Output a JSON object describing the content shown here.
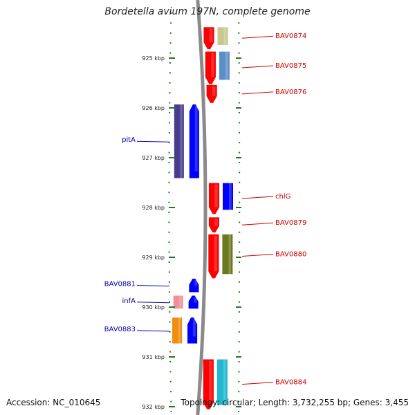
{
  "title": "Bordetella avium 197N, complete genome",
  "footer": {
    "accession": "Accession: NC_010645",
    "topology": "Topology: circular; Length: 3,732,255 bp; Genes: 3,455"
  },
  "colors": {
    "forward_strand": "#ff0000",
    "reverse_strand": "#0000ff",
    "forward_label": "#cc0000",
    "reverse_label": "#0000aa",
    "backbone": "#8a8a8a",
    "tick": "#1e7a1e"
  },
  "ticks": [
    {
      "label": "925 kbp",
      "kbp": 925
    },
    {
      "label": "926 kbp",
      "kbp": 926
    },
    {
      "label": "927 kbp",
      "kbp": 927
    },
    {
      "label": "928 kbp",
      "kbp": 928
    },
    {
      "label": "929 kbp",
      "kbp": 929
    },
    {
      "label": "930 kbp",
      "kbp": 930
    },
    {
      "label": "931 kbp",
      "kbp": 931
    },
    {
      "label": "932 kbp",
      "kbp": 932
    }
  ],
  "forward_genes": [
    {
      "name": "BAV0874",
      "start_kbp": 924.38,
      "end_kbp": 924.82,
      "cog_color": "#c8c890"
    },
    {
      "name": "BAV0875",
      "start_kbp": 924.87,
      "end_kbp": 925.52,
      "cog_color": "#5b8fc8"
    },
    {
      "name": "BAV0876",
      "start_kbp": 925.54,
      "end_kbp": 925.9,
      "cog_color": null
    },
    {
      "name": "chlG",
      "start_kbp": 927.51,
      "end_kbp": 928.13,
      "cog_color": "#0000ff"
    },
    {
      "name": "BAV0879",
      "start_kbp": 928.2,
      "end_kbp": 928.5,
      "cog_color": null
    },
    {
      "name": "BAV0880",
      "start_kbp": 928.54,
      "end_kbp": 929.42,
      "cog_color": "#6b7a1e"
    },
    {
      "name": "BAV0884",
      "start_kbp": 931.05,
      "end_kbp": 932.05,
      "cog_color": "#20b8d0"
    }
  ],
  "reverse_genes": [
    {
      "name": "pitA",
      "start_kbp": 925.93,
      "end_kbp": 927.41,
      "cog_color": "#4a3c8c"
    },
    {
      "name": "BAV0881",
      "start_kbp": 929.43,
      "end_kbp": 929.7,
      "cog_color": null
    },
    {
      "name": "infA",
      "start_kbp": 929.77,
      "end_kbp": 930.03,
      "cog_color": "#f0909a"
    },
    {
      "name": "BAV0883",
      "start_kbp": 930.21,
      "end_kbp": 930.73,
      "cog_color": "#f08c10"
    }
  ]
}
